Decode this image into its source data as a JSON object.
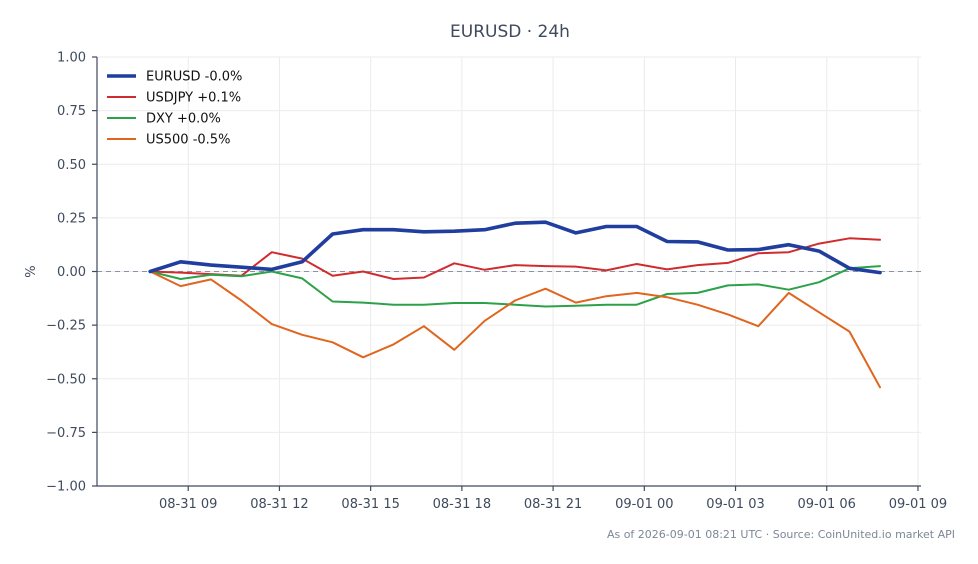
{
  "chart_data": {
    "type": "line",
    "title": "EURUSD · 24h",
    "ylabel": "%",
    "xlabel": "",
    "ylim": [
      -1.0,
      1.0
    ],
    "yticks": [
      "1.00",
      "0.75",
      "0.50",
      "0.25",
      "0.00",
      "−0.25",
      "−0.50",
      "−0.75",
      "−1.00"
    ],
    "ytick_values": [
      1.0,
      0.75,
      0.5,
      0.25,
      0.0,
      -0.25,
      -0.5,
      -0.75,
      -1.0
    ],
    "xticks": [
      "08-31 09",
      "08-31 12",
      "08-31 15",
      "08-31 18",
      "08-31 21",
      "09-01 00",
      "09-01 03",
      "09-01 06",
      "09-01 09"
    ],
    "xtick_hours": [
      9,
      12,
      15,
      18,
      21,
      24,
      27,
      30,
      33
    ],
    "xlim_hours": [
      6.0,
      33.1
    ],
    "x_hours": [
      7.75,
      8.75,
      9.75,
      10.75,
      11.75,
      12.75,
      13.75,
      14.75,
      15.75,
      16.75,
      17.75,
      18.75,
      19.75,
      20.75,
      21.75,
      22.75,
      23.75,
      24.75,
      25.75,
      26.75,
      27.75,
      28.75,
      29.75,
      30.75,
      31.75
    ],
    "grid": true,
    "legend_position": "top-left",
    "baseline": 0.0,
    "series": [
      {
        "name": "EURUSD -0.0%",
        "color": "#1f3e9e",
        "width": 3.6,
        "values": [
          0.0,
          0.045,
          0.03,
          0.02,
          0.01,
          0.045,
          0.175,
          0.195,
          0.195,
          0.185,
          0.188,
          0.195,
          0.225,
          0.23,
          0.18,
          0.21,
          0.21,
          0.14,
          0.138,
          0.1,
          0.102,
          0.125,
          0.095,
          0.015,
          -0.005
        ]
      },
      {
        "name": "USDJPY +0.1%",
        "color": "#d02c30",
        "width": 2.0,
        "values": [
          0.0,
          -0.005,
          -0.012,
          -0.02,
          0.09,
          0.06,
          -0.02,
          0.0,
          -0.035,
          -0.028,
          0.038,
          0.008,
          0.03,
          0.025,
          0.023,
          0.005,
          0.035,
          0.01,
          0.03,
          0.04,
          0.085,
          0.09,
          0.13,
          0.155,
          0.148
        ]
      },
      {
        "name": "DXY +0.0%",
        "color": "#2ba24a",
        "width": 2.0,
        "values": [
          0.0,
          -0.035,
          -0.015,
          -0.022,
          0.0,
          -0.032,
          -0.14,
          -0.145,
          -0.155,
          -0.155,
          -0.147,
          -0.147,
          -0.155,
          -0.163,
          -0.16,
          -0.155,
          -0.155,
          -0.105,
          -0.1,
          -0.065,
          -0.06,
          -0.085,
          -0.05,
          0.015,
          0.025
        ]
      },
      {
        "name": "US500 -0.5%",
        "color": "#e0651e",
        "width": 2.0,
        "values": [
          0.0,
          -0.068,
          -0.037,
          -0.135,
          -0.245,
          -0.295,
          -0.33,
          -0.4,
          -0.34,
          -0.255,
          -0.365,
          -0.23,
          -0.135,
          -0.08,
          -0.145,
          -0.115,
          -0.1,
          -0.12,
          -0.155,
          -0.2,
          -0.255,
          -0.1,
          -0.19,
          -0.28,
          -0.54
        ]
      }
    ]
  },
  "footer": "As of 2026-09-01 08:21 UTC · Source: CoinUnited.io market API"
}
